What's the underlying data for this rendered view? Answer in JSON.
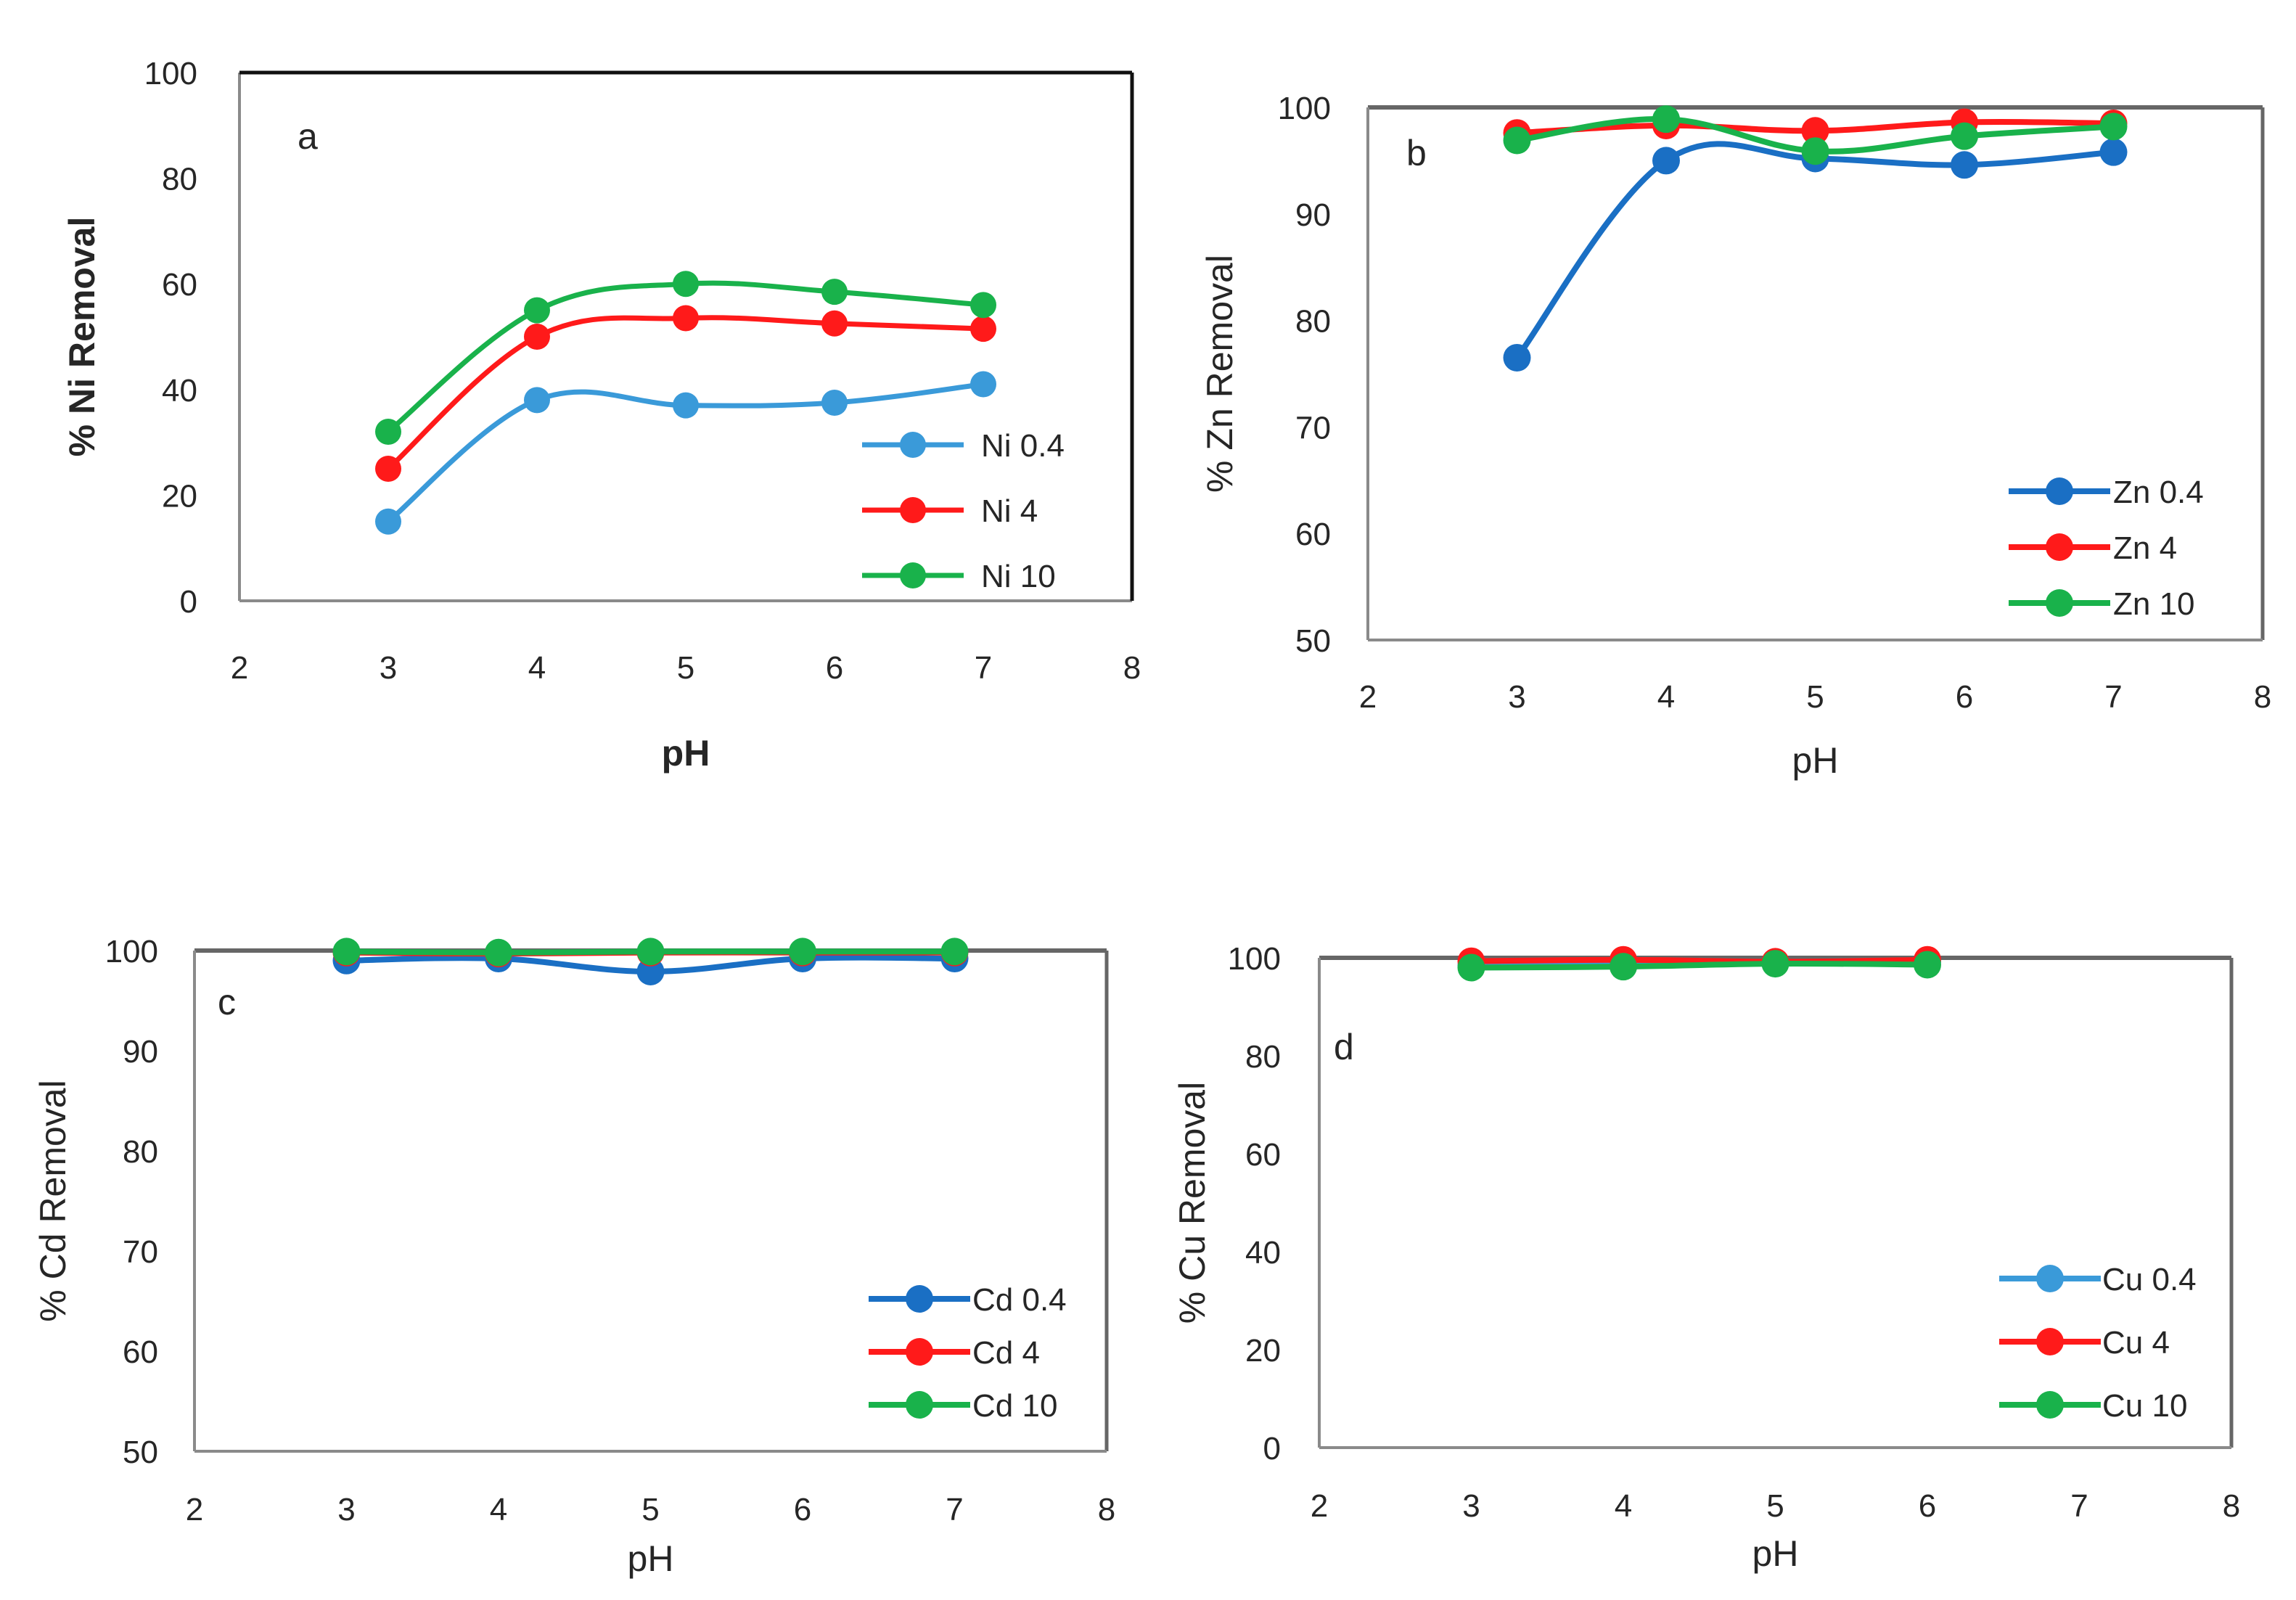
{
  "chart_data": [
    {
      "id": "a",
      "type": "line",
      "panel_label": "a",
      "xlabel": "pH",
      "ylabel": "% Ni Removal",
      "xlim": [
        2,
        8
      ],
      "ylim": [
        0,
        100
      ],
      "xticks": [
        2,
        3,
        4,
        5,
        6,
        7,
        8
      ],
      "yticks": [
        0,
        20,
        40,
        60,
        80,
        100
      ],
      "legend_position": "right",
      "series": [
        {
          "name": "Ni 0.4",
          "color": "#3a9ad9",
          "x": [
            3,
            4,
            5,
            6,
            7
          ],
          "values": [
            15,
            38,
            37,
            37.5,
            41
          ]
        },
        {
          "name": "Ni 4",
          "color": "#ff1a1a",
          "x": [
            3,
            4,
            5,
            6,
            7
          ],
          "values": [
            25,
            50,
            53.5,
            52.5,
            51.5
          ]
        },
        {
          "name": "Ni 10",
          "color": "#19b24b",
          "x": [
            3,
            4,
            5,
            6,
            7
          ],
          "values": [
            32,
            55,
            60,
            58.5,
            56
          ]
        }
      ]
    },
    {
      "id": "b",
      "type": "line",
      "panel_label": "b",
      "xlabel": "pH",
      "ylabel": "% Zn Removal",
      "xlim": [
        2,
        8
      ],
      "ylim": [
        50,
        100
      ],
      "xticks": [
        2,
        3,
        4,
        5,
        6,
        7,
        8
      ],
      "yticks": [
        50,
        60,
        70,
        80,
        90,
        100
      ],
      "legend_position": "bottom-right",
      "series": [
        {
          "name": "Zn 0.4",
          "color": "#1a6fc4",
          "x": [
            3,
            4,
            5,
            6,
            7
          ],
          "values": [
            76.5,
            95,
            95.2,
            94.6,
            95.8
          ]
        },
        {
          "name": "Zn 4",
          "color": "#ff1a1a",
          "x": [
            3,
            4,
            5,
            6,
            7
          ],
          "values": [
            97.6,
            98.3,
            97.8,
            98.6,
            98.5
          ]
        },
        {
          "name": "Zn 10",
          "color": "#19b24b",
          "x": [
            3,
            4,
            5,
            6,
            7
          ],
          "values": [
            96.9,
            98.9,
            95.9,
            97.3,
            98.2
          ]
        }
      ]
    },
    {
      "id": "c",
      "type": "line",
      "panel_label": "c",
      "xlabel": "pH",
      "ylabel": "% Cd Removal",
      "xlim": [
        2,
        8
      ],
      "ylim": [
        50,
        100
      ],
      "xticks": [
        2,
        3,
        4,
        5,
        6,
        7,
        8
      ],
      "yticks": [
        50,
        60,
        70,
        80,
        90,
        100
      ],
      "legend_position": "bottom-right",
      "series": [
        {
          "name": "Cd 0.4",
          "color": "#1a6fc4",
          "x": [
            3,
            4,
            5,
            6,
            7
          ],
          "values": [
            99,
            99.2,
            97.9,
            99.2,
            99.2
          ]
        },
        {
          "name": "Cd 4",
          "color": "#ff1a1a",
          "x": [
            3,
            4,
            5,
            6,
            7
          ],
          "values": [
            99.8,
            99.7,
            99.8,
            99.8,
            99.8
          ]
        },
        {
          "name": "Cd 10",
          "color": "#19b24b",
          "x": [
            3,
            4,
            5,
            6,
            7
          ],
          "values": [
            99.9,
            99.8,
            99.9,
            99.9,
            99.9
          ]
        }
      ]
    },
    {
      "id": "d",
      "type": "line",
      "panel_label": "d",
      "xlabel": "pH",
      "ylabel": "% Cu Removal",
      "xlim": [
        2,
        8
      ],
      "ylim": [
        0,
        100
      ],
      "xticks": [
        2,
        3,
        4,
        5,
        6,
        7,
        8
      ],
      "yticks": [
        0,
        20,
        40,
        60,
        80,
        100
      ],
      "legend_position": "bottom-right",
      "series": [
        {
          "name": "Cu 0.4",
          "color": "#3a9ad9",
          "x": [
            3,
            4,
            5,
            6
          ],
          "values": [
            98.5,
            98.8,
            99,
            99.2
          ]
        },
        {
          "name": "Cu 4",
          "color": "#ff1a1a",
          "x": [
            3,
            4,
            5,
            6
          ],
          "values": [
            99.3,
            99.6,
            99.2,
            99.6
          ]
        },
        {
          "name": "Cu 10",
          "color": "#19b24b",
          "x": [
            3,
            4,
            5,
            6
          ],
          "values": [
            98,
            98.2,
            98.8,
            98.6
          ]
        }
      ]
    }
  ]
}
